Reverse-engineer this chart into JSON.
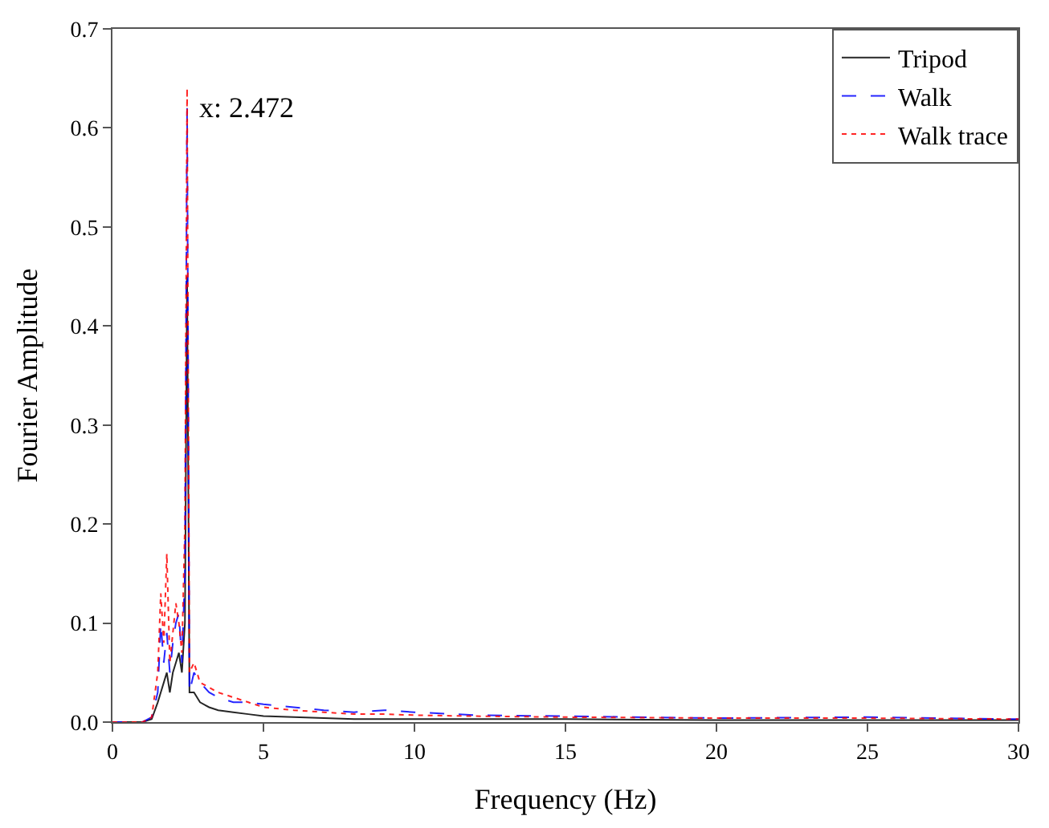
{
  "chart_data": {
    "type": "line",
    "xlabel": "Frequency (Hz)",
    "ylabel": "Fourier Amplitude",
    "x": [
      0,
      0.5,
      1,
      1.3,
      1.5,
      1.6,
      1.7,
      1.8,
      1.9,
      2.0,
      2.1,
      2.2,
      2.3,
      2.4,
      2.472,
      2.55,
      2.7,
      2.9,
      3.2,
      3.5,
      4,
      4.5,
      5,
      6,
      7,
      8,
      9,
      10,
      12,
      15,
      20,
      25,
      30
    ],
    "series": [
      {
        "name": "Tripod",
        "color": "#000000",
        "line_style": "solid",
        "values": [
          0,
          0,
          0,
          0.003,
          0.02,
          0.03,
          0.04,
          0.05,
          0.03,
          0.05,
          0.06,
          0.07,
          0.05,
          0.1,
          0.45,
          0.03,
          0.03,
          0.02,
          0.015,
          0.012,
          0.01,
          0.008,
          0.006,
          0.005,
          0.004,
          0.003,
          0.003,
          0.003,
          0.003,
          0.003,
          0.002,
          0.002,
          0.002
        ]
      },
      {
        "name": "Walk",
        "color": "#0000ff",
        "line_style": "dashed",
        "values": [
          0,
          0,
          0,
          0.005,
          0.03,
          0.1,
          0.06,
          0.09,
          0.05,
          0.08,
          0.1,
          0.11,
          0.06,
          0.15,
          0.62,
          0.03,
          0.05,
          0.04,
          0.03,
          0.025,
          0.02,
          0.02,
          0.018,
          0.015,
          0.012,
          0.01,
          0.012,
          0.01,
          0.007,
          0.006,
          0.004,
          0.005,
          0.003
        ]
      },
      {
        "name": "Walk trace",
        "color": "#ff0000",
        "line_style": "dotted",
        "values": [
          0,
          0,
          0,
          0.005,
          0.05,
          0.13,
          0.08,
          0.17,
          0.06,
          0.09,
          0.12,
          0.1,
          0.07,
          0.2,
          0.64,
          0.05,
          0.06,
          0.04,
          0.035,
          0.03,
          0.025,
          0.02,
          0.015,
          0.012,
          0.01,
          0.008,
          0.008,
          0.007,
          0.006,
          0.005,
          0.004,
          0.004,
          0.003
        ]
      }
    ],
    "annotations": [
      {
        "text": "x: 2.472",
        "x": 2.472,
        "y": 0.64
      }
    ],
    "xlim": [
      0,
      30
    ],
    "xticks": [
      0,
      5,
      10,
      15,
      20,
      25,
      30
    ],
    "ylim": [
      0,
      0.7
    ],
    "yticks": [
      {
        "value": 0,
        "label": "0.0"
      },
      0.1,
      0.2,
      0.3,
      0.4,
      0.5,
      0.6,
      0.7
    ],
    "legend": "top right"
  }
}
